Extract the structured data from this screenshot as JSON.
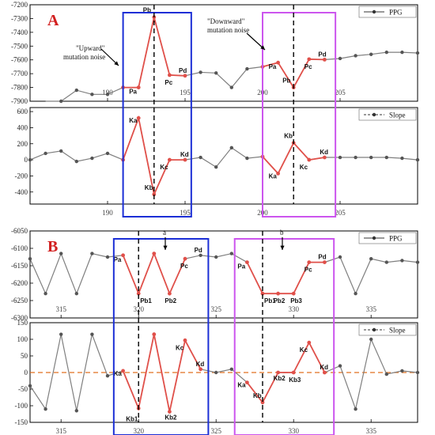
{
  "colors": {
    "gray_series": "#7f7f7f",
    "red_series": "#e0504a",
    "blue_box": "#1c2fd6",
    "magenta_box": "#cc55ee",
    "panel_letter": "#d21f1f",
    "zero_line": "#e07020"
  },
  "panel_labels": [
    "A",
    "B"
  ],
  "annotations": {
    "upward": [
      "\"Upward\"",
      "mutation noise"
    ],
    "downward": [
      "\"Downward\"",
      "mutation noise"
    ],
    "a": "a",
    "b": "b"
  },
  "chart_data": [
    {
      "type": "line",
      "panel": "A",
      "legend": "PPG",
      "legend_position": "top-right",
      "grid": false,
      "xlim": [
        185,
        210
      ],
      "ylim": [
        -7900,
        -7200
      ],
      "yticks": [
        -7200,
        -7300,
        -7400,
        -7500,
        -7600,
        -7700,
        -7800,
        -7900
      ],
      "xticks": [
        190,
        195,
        200,
        205
      ],
      "x": [
        186,
        187,
        188,
        189,
        190,
        191,
        192,
        193,
        194,
        195,
        196,
        197,
        198,
        199,
        200,
        201,
        202,
        203,
        204,
        205,
        206,
        207,
        208,
        209,
        210
      ],
      "y": [
        -7960,
        -7900,
        -7820,
        -7850,
        -7850,
        -7800,
        -7800,
        -7290,
        -7710,
        -7715,
        -7690,
        -7695,
        -7800,
        -7665,
        -7650,
        -7620,
        -7800,
        -7595,
        -7598,
        -7590,
        -7570,
        -7560,
        -7545,
        -7545,
        -7550
      ],
      "highlight_segments": [
        [
          191,
          195
        ],
        [
          200,
          204
        ]
      ],
      "point_labels": [
        {
          "x": 192,
          "text": "Pa"
        },
        {
          "x": 193,
          "text": "Pb"
        },
        {
          "x": 194,
          "text": "Pc"
        },
        {
          "x": 195,
          "text": "Pd"
        },
        {
          "x": 201,
          "text": "Pa"
        },
        {
          "x": 202,
          "text": "Pb"
        },
        {
          "x": 203,
          "text": "Pc"
        },
        {
          "x": 204,
          "text": "Pd"
        }
      ],
      "vlines": [
        193,
        202
      ]
    },
    {
      "type": "line",
      "panel": "A",
      "legend": "Slope",
      "legend_position": "top-right",
      "grid": false,
      "xlim": [
        185,
        210
      ],
      "ylim": [
        -550,
        650
      ],
      "yticks": [
        600,
        400,
        200,
        0,
        -200,
        -400
      ],
      "xticks": [
        190,
        195,
        200,
        205
      ],
      "x": [
        185,
        186,
        187,
        188,
        189,
        190,
        191,
        192,
        193,
        194,
        195,
        196,
        197,
        198,
        199,
        200,
        201,
        202,
        203,
        204,
        205,
        206,
        207,
        208,
        209,
        210
      ],
      "y": [
        0,
        80,
        110,
        -20,
        20,
        80,
        0,
        520,
        -430,
        0,
        0,
        30,
        -90,
        150,
        20,
        40,
        -170,
        210,
        0,
        30,
        30,
        30,
        30,
        30,
        20,
        0
      ],
      "highlight_segments": [
        [
          191,
          195
        ],
        [
          200,
          204
        ]
      ],
      "point_labels": [
        {
          "x": 192,
          "text": "Ka"
        },
        {
          "x": 193,
          "text": "Kb"
        },
        {
          "x": 194,
          "text": "Kc"
        },
        {
          "x": 195,
          "text": "Kd"
        },
        {
          "x": 201,
          "text": "Ka"
        },
        {
          "x": 202,
          "text": "Kb"
        },
        {
          "x": 203,
          "text": "Kc"
        },
        {
          "x": 204,
          "text": "Kd"
        }
      ],
      "vlines": [
        193,
        202
      ]
    },
    {
      "type": "line",
      "panel": "B",
      "legend": "PPG",
      "legend_position": "top-right",
      "grid": false,
      "xlim": [
        313,
        338
      ],
      "ylim": [
        -6300,
        -6050
      ],
      "yticks": [
        -6050,
        -6100,
        -6150,
        -6200,
        -6250,
        -6300
      ],
      "xticks": [
        315,
        320,
        325,
        330,
        335
      ],
      "x": [
        313,
        314,
        315,
        316,
        317,
        318,
        319,
        320,
        321,
        322,
        323,
        324,
        325,
        326,
        327,
        328,
        329,
        330,
        331,
        332,
        333,
        334,
        335,
        336,
        337,
        338
      ],
      "y": [
        -6130,
        -6230,
        -6115,
        -6230,
        -6115,
        -6125,
        -6120,
        -6230,
        -6115,
        -6230,
        -6130,
        -6120,
        -6125,
        -6115,
        -6140,
        -6230,
        -6230,
        -6230,
        -6140,
        -6140,
        -6125,
        -6230,
        -6130,
        -6140,
        -6135,
        -6140
      ],
      "highlight_segments": [
        [
          319,
          323
        ],
        [
          327,
          332
        ]
      ],
      "point_labels": [
        {
          "x": 319,
          "text": "Pa"
        },
        {
          "x": 320,
          "text": "Pb1"
        },
        {
          "x": 322,
          "text": "Pb2"
        },
        {
          "x": 323,
          "text": "Pc"
        },
        {
          "x": 324,
          "text": "Pd"
        },
        {
          "x": 327,
          "text": "Pa"
        },
        {
          "x": 328,
          "text": "Pb1"
        },
        {
          "x": 329,
          "text": "Pb2"
        },
        {
          "x": 330,
          "text": "Pb3"
        },
        {
          "x": 331,
          "text": "Pc"
        },
        {
          "x": 332,
          "text": "Pd"
        }
      ],
      "vlines": [
        320,
        328
      ]
    },
    {
      "type": "line",
      "panel": "B",
      "legend": "Slope",
      "legend_position": "top-right",
      "grid": false,
      "xlim": [
        313,
        338
      ],
      "ylim": [
        -150,
        150
      ],
      "yticks": [
        150,
        100,
        50,
        0,
        -50,
        -100,
        -150
      ],
      "xticks": [
        315,
        320,
        325,
        330,
        335
      ],
      "x": [
        313,
        314,
        315,
        316,
        317,
        318,
        319,
        320,
        321,
        322,
        323,
        324,
        325,
        326,
        327,
        328,
        329,
        330,
        331,
        332,
        333,
        334,
        335,
        336,
        337,
        338
      ],
      "y": [
        -40,
        -110,
        115,
        -115,
        115,
        -10,
        5,
        -108,
        115,
        -118,
        97,
        10,
        0,
        10,
        -30,
        -90,
        0,
        0,
        90,
        0,
        20,
        -110,
        100,
        -5,
        5,
        0
      ],
      "highlight_segments": [
        [
          319,
          324
        ],
        [
          327,
          332
        ]
      ],
      "point_labels": [
        {
          "x": 319,
          "text": "Ka"
        },
        {
          "x": 320,
          "text": "Kb1"
        },
        {
          "x": 322,
          "text": "Kb2"
        },
        {
          "x": 323,
          "text": "Kc"
        },
        {
          "x": 324,
          "text": "Kd"
        },
        {
          "x": 327,
          "text": "Ka"
        },
        {
          "x": 328,
          "text": "Kb"
        },
        {
          "x": 329,
          "text": "Kb2"
        },
        {
          "x": 330,
          "text": "Kb3"
        },
        {
          "x": 331,
          "text": "Kc"
        },
        {
          "x": 332,
          "text": "Kd"
        }
      ],
      "vlines": [
        320,
        328
      ],
      "zero_line": true
    }
  ]
}
